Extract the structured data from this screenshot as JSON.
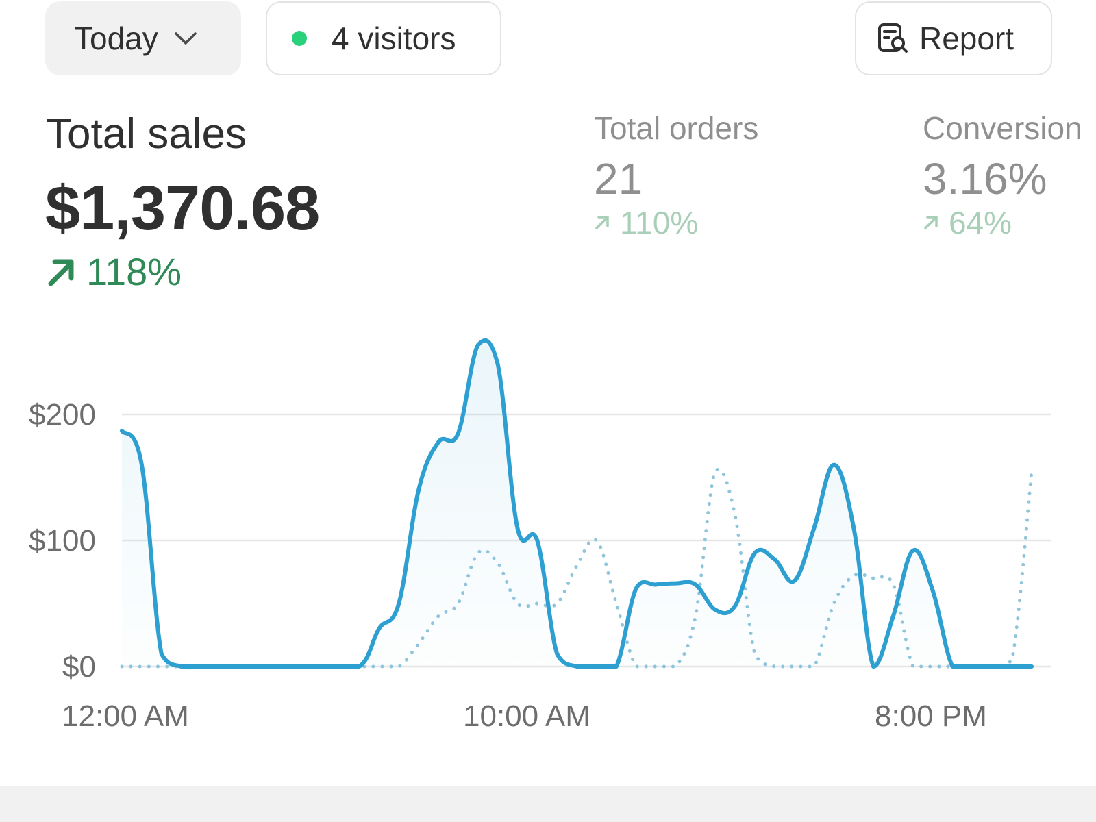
{
  "header": {
    "date_filter_label": "Today",
    "visitors_label": "4 visitors",
    "report_label": "Report"
  },
  "metrics": {
    "total_sales": {
      "label": "Total sales",
      "value": "$1,370.68",
      "change": "118%"
    },
    "total_orders": {
      "label": "Total orders",
      "value": "21",
      "change": "110%"
    },
    "conversion": {
      "label": "Conversion",
      "value": "3.16%",
      "change": "64%"
    }
  },
  "colors": {
    "primary_line": "#2d9fd0",
    "comparison_line": "#8fc5dc",
    "positive": "#2f8a57",
    "live_dot": "#29d17b"
  },
  "icons": {
    "date_filter": "chevron-down-icon",
    "visitors": "live-dot-icon",
    "report": "report-search-icon",
    "change": "arrow-up-right-icon"
  },
  "chart_data": {
    "type": "line",
    "x_tick_labels": [
      "12:00 AM",
      "10:00 AM",
      "8:00 PM"
    ],
    "y_tick_labels": [
      "$0",
      "$100",
      "$200"
    ],
    "ylim": [
      0,
      260
    ],
    "grid": true,
    "series": [
      {
        "style": "solid",
        "x": [
          0,
          0.5,
          1,
          1.5,
          2,
          3,
          4,
          5,
          6,
          6.5,
          7,
          7.5,
          8,
          8.5,
          9,
          9.5,
          10,
          10.5,
          11,
          11.5,
          12,
          12.5,
          13,
          13.5,
          14,
          14.5,
          15,
          15.5,
          16,
          16.5,
          17,
          17.5,
          18,
          18.5,
          19,
          19.5,
          20,
          20.5,
          21,
          21.5,
          22,
          22.5,
          23
        ],
        "y": [
          187,
          160,
          10,
          0,
          0,
          0,
          0,
          0,
          0,
          30,
          50,
          140,
          178,
          185,
          255,
          240,
          110,
          100,
          10,
          0,
          0,
          0,
          62,
          65,
          66,
          65,
          45,
          48,
          90,
          85,
          68,
          110,
          160,
          110,
          0,
          40,
          92,
          60,
          0,
          0,
          0,
          0,
          0
        ]
      },
      {
        "style": "dotted",
        "x": [
          0,
          1,
          2,
          3,
          4,
          5,
          6,
          6.5,
          7,
          7.5,
          8,
          8.5,
          9,
          9.5,
          10,
          10.5,
          11,
          11.5,
          12,
          12.5,
          13,
          13.5,
          14,
          14.5,
          15,
          15.5,
          16,
          16.5,
          17,
          17.5,
          18,
          18.5,
          19,
          19.5,
          20,
          20.5,
          21,
          21.5,
          22,
          22.5,
          23
        ],
        "y": [
          0,
          0,
          0,
          0,
          0,
          0,
          0,
          0,
          0,
          18,
          40,
          50,
          90,
          82,
          50,
          50,
          50,
          80,
          100,
          50,
          0,
          0,
          0,
          40,
          155,
          120,
          10,
          0,
          0,
          0,
          50,
          72,
          70,
          65,
          0,
          0,
          0,
          0,
          0,
          5,
          155
        ]
      }
    ]
  }
}
